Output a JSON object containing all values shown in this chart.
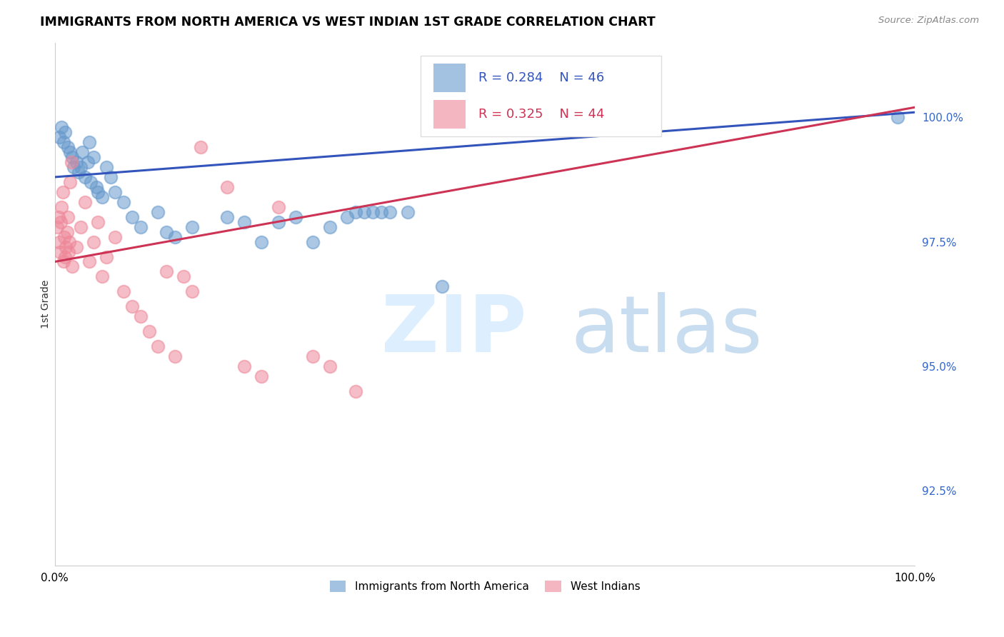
{
  "title": "IMMIGRANTS FROM NORTH AMERICA VS WEST INDIAN 1ST GRADE CORRELATION CHART",
  "source": "Source: ZipAtlas.com",
  "ylabel": "1st Grade",
  "y_ticks": [
    92.5,
    95.0,
    97.5,
    100.0
  ],
  "y_tick_labels": [
    "92.5%",
    "95.0%",
    "97.5%",
    "100.0%"
  ],
  "xlim": [
    0.0,
    1.0
  ],
  "ylim": [
    91.0,
    101.5
  ],
  "blue_R": "0.284",
  "blue_N": "46",
  "pink_R": "0.325",
  "pink_N": "44",
  "blue_color": "#6699cc",
  "pink_color": "#ee8899",
  "blue_label": "Immigrants from North America",
  "pink_label": "West Indians",
  "grid_color": "#cccccc",
  "blue_scatter_x": [
    0.005,
    0.008,
    0.01,
    0.012,
    0.015,
    0.018,
    0.02,
    0.022,
    0.025,
    0.028,
    0.03,
    0.032,
    0.035,
    0.038,
    0.04,
    0.042,
    0.045,
    0.048,
    0.05,
    0.055,
    0.06,
    0.065,
    0.07,
    0.08,
    0.09,
    0.1,
    0.12,
    0.13,
    0.14,
    0.16,
    0.2,
    0.22,
    0.24,
    0.26,
    0.28,
    0.3,
    0.32,
    0.34,
    0.35,
    0.36,
    0.37,
    0.38,
    0.39,
    0.41,
    0.45,
    0.98
  ],
  "blue_scatter_y": [
    99.6,
    99.8,
    99.5,
    99.7,
    99.4,
    99.3,
    99.2,
    99.0,
    99.1,
    98.9,
    99.0,
    99.3,
    98.8,
    99.1,
    99.5,
    98.7,
    99.2,
    98.6,
    98.5,
    98.4,
    99.0,
    98.8,
    98.5,
    98.3,
    98.0,
    97.8,
    98.1,
    97.7,
    97.6,
    97.8,
    98.0,
    97.9,
    97.5,
    97.9,
    98.0,
    97.5,
    97.8,
    98.0,
    98.1,
    98.1,
    98.1,
    98.1,
    98.1,
    98.1,
    96.6,
    100.0
  ],
  "pink_scatter_x": [
    0.003,
    0.004,
    0.005,
    0.006,
    0.007,
    0.008,
    0.009,
    0.01,
    0.011,
    0.012,
    0.013,
    0.014,
    0.015,
    0.016,
    0.017,
    0.018,
    0.019,
    0.02,
    0.025,
    0.03,
    0.035,
    0.04,
    0.045,
    0.05,
    0.055,
    0.06,
    0.07,
    0.08,
    0.09,
    0.1,
    0.11,
    0.12,
    0.13,
    0.14,
    0.15,
    0.16,
    0.17,
    0.2,
    0.22,
    0.24,
    0.26,
    0.3,
    0.32,
    0.35
  ],
  "pink_scatter_y": [
    97.8,
    98.0,
    97.5,
    97.3,
    97.9,
    98.2,
    98.5,
    97.1,
    97.6,
    97.2,
    97.4,
    97.7,
    98.0,
    97.3,
    97.5,
    98.7,
    99.1,
    97.0,
    97.4,
    97.8,
    98.3,
    97.1,
    97.5,
    97.9,
    96.8,
    97.2,
    97.6,
    96.5,
    96.2,
    96.0,
    95.7,
    95.4,
    96.9,
    95.2,
    96.8,
    96.5,
    99.4,
    98.6,
    95.0,
    94.8,
    98.2,
    95.2,
    95.0,
    94.5
  ],
  "blue_line_x": [
    0.0,
    1.0
  ],
  "blue_line_y": [
    98.8,
    100.1
  ],
  "pink_line_x": [
    0.0,
    1.0
  ],
  "pink_line_y": [
    97.1,
    100.2
  ]
}
